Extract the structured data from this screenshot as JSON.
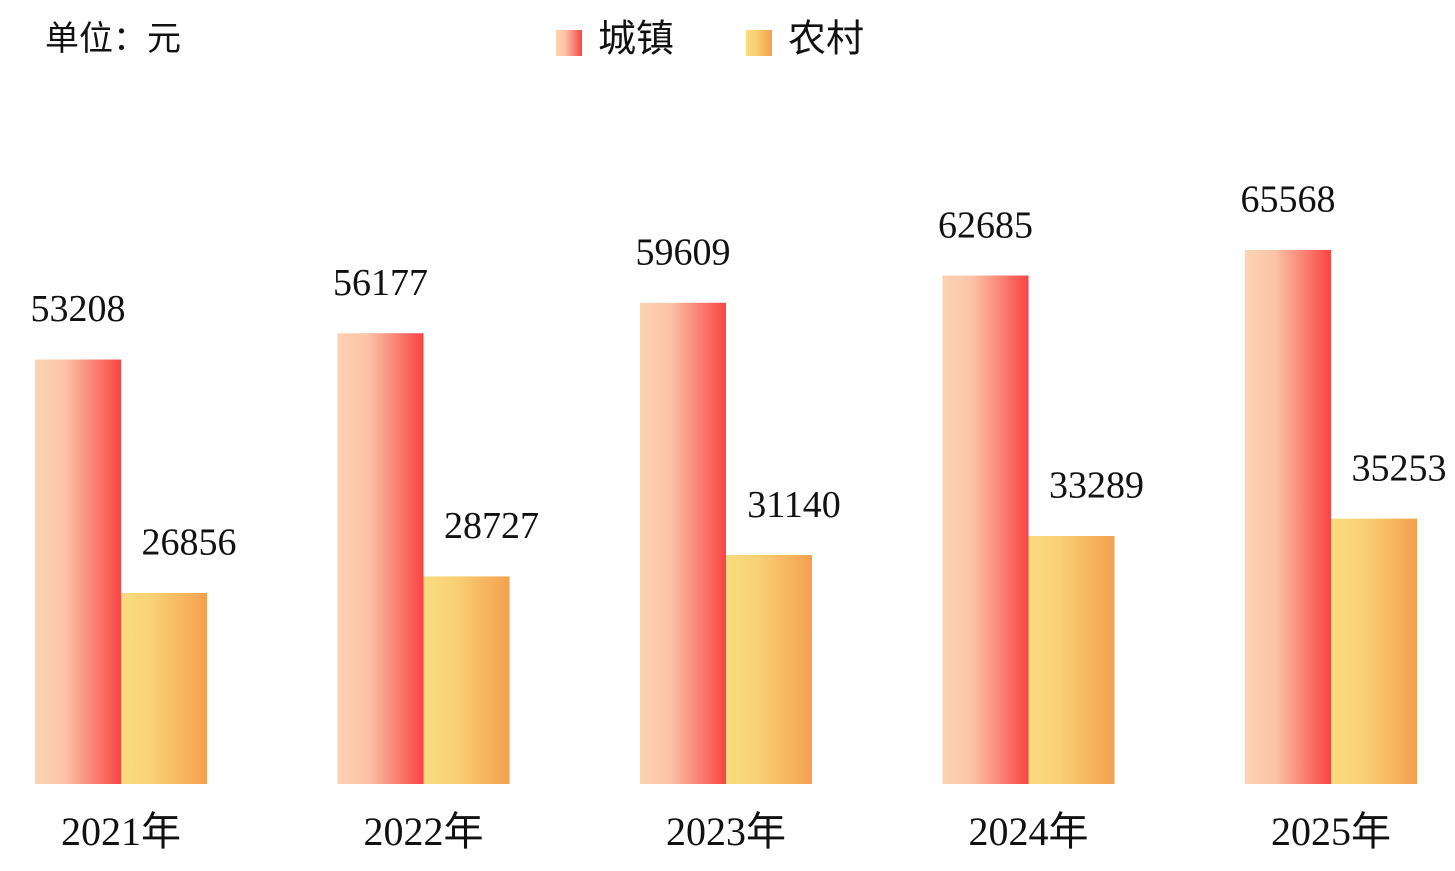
{
  "chart_data": {
    "type": "bar",
    "unit_label": "单位：元",
    "categories": [
      "2021年",
      "2022年",
      "2023年",
      "2024年",
      "2025年"
    ],
    "series": [
      {
        "name": "城镇",
        "color": "#f94444",
        "values": [
          53208,
          56177,
          59609,
          62685,
          65568
        ]
      },
      {
        "name": "农村",
        "color": "#f4a04e",
        "values": [
          26856,
          28727,
          31140,
          33289,
          35253
        ]
      }
    ]
  }
}
